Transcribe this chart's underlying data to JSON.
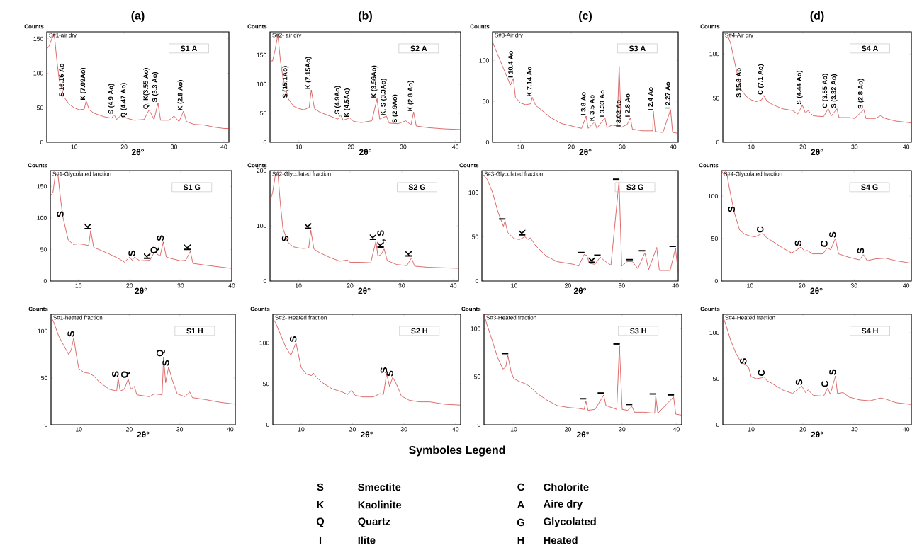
{
  "chart_data": [
    {
      "type": "line",
      "title": "(a)",
      "subtitle": "S#1-air dry",
      "xlabel": "2θ°",
      "ylabel": "Counts",
      "x": [
        4.5,
        5,
        5.5,
        6,
        6.5,
        7,
        8,
        9,
        10,
        11,
        12,
        12.4,
        13,
        14,
        16,
        17.5,
        18,
        18.5,
        19.5,
        20.5,
        22,
        24,
        25,
        26,
        26.8,
        27.3,
        29,
        30,
        31,
        31.9,
        32.5,
        34,
        36,
        38,
        40,
        41
      ],
      "series": [
        {
          "color": "#cc2222",
          "values": [
            135,
            140,
            150,
            157,
            120,
            90,
            65,
            55,
            50,
            47,
            48,
            60,
            47,
            42,
            37,
            35,
            40,
            33,
            40,
            35,
            32,
            33,
            47,
            33,
            57,
            32,
            32,
            38,
            30,
            45,
            30,
            26,
            25,
            22,
            20,
            20
          ]
        }
      ],
      "xlim": [
        4.5,
        41
      ],
      "ylim": [
        0,
        160
      ],
      "xticks": [
        10,
        20,
        30,
        40
      ],
      "yticks": [
        0,
        50,
        100,
        150
      ],
      "annotations": [
        "S1 A",
        {
          "text": "S 15.16 Ao",
          "x": 8,
          "y": 65
        },
        {
          "text": "K (7.09Ao)",
          "x": 12.4,
          "y": 60
        },
        {
          "text": "S (4.9 Ao)",
          "x": 18,
          "y": 40
        },
        {
          "text": "Q  (4.47 Ao)",
          "x": 20.5,
          "y": 35
        },
        {
          "text": "Q, K(3.55 Ao)",
          "x": 25,
          "y": 47
        },
        {
          "text": "S  (3.3 Ao)",
          "x": 26.8,
          "y": 57
        },
        {
          "text": "K  (2.8 Ao)",
          "x": 31.9,
          "y": 45
        }
      ]
    },
    {
      "type": "line",
      "title": "(b)",
      "subtitle": "S#2- air dry",
      "xlabel": "2θ°",
      "ylabel": "Counts",
      "x": [
        4.5,
        5,
        5.5,
        6,
        6.5,
        7,
        8,
        9,
        10,
        11,
        12,
        12.4,
        13,
        14,
        16,
        17.5,
        18,
        18.5,
        19.8,
        20.5,
        22,
        24,
        25,
        25.5,
        26.8,
        27.3,
        29,
        30.5,
        31.5,
        32,
        32.5,
        35,
        38,
        41
      ],
      "series": [
        {
          "color": "#cc2222",
          "values": [
            140,
            140,
            160,
            185,
            140,
            110,
            75,
            62,
            58,
            56,
            60,
            90,
            58,
            52,
            45,
            40,
            47,
            38,
            42,
            36,
            34,
            37,
            75,
            40,
            45,
            33,
            32,
            37,
            30,
            52,
            28,
            25,
            23,
            22
          ]
        }
      ],
      "xlim": [
        4.5,
        41
      ],
      "ylim": [
        0,
        190
      ],
      "xticks": [
        10,
        20,
        30,
        40
      ],
      "yticks": [
        0,
        50,
        100,
        150
      ],
      "annotations": [
        "S2 A",
        {
          "text": "S (15.1Ao)",
          "x": 8,
          "y": 75
        },
        {
          "text": "K (7.15Ao)",
          "x": 12.4,
          "y": 90
        },
        {
          "text": "S (4.9Ao)",
          "x": 18,
          "y": 47
        },
        {
          "text": "K (4.5Ao)",
          "x": 19.8,
          "y": 42
        },
        {
          "text": "K (3.56Ao)",
          "x": 25,
          "y": 75
        },
        {
          "text": "K, S (3.3Ao)",
          "x": 26.8,
          "y": 45
        },
        {
          "text": "S (2.9Ao)",
          "x": 29,
          "y": 32
        },
        {
          "text": "K (2.8 Ao)",
          "x": 32,
          "y": 52
        }
      ]
    },
    {
      "type": "line",
      "title": "(c)",
      "subtitle": "S#3-Air dry",
      "xlabel": "2θ°",
      "ylabel": "Counts",
      "x": [
        4.5,
        5,
        6,
        7,
        8,
        8.6,
        9,
        10,
        11,
        12,
        12.3,
        13,
        14,
        16,
        18,
        20,
        22,
        22.9,
        23.3,
        24.6,
        25,
        26.6,
        27,
        28,
        29,
        29.4,
        29.8,
        31,
        31.6,
        32,
        34,
        36,
        36.1,
        36.5,
        38,
        39.5,
        39.9,
        41
      ],
      "series": [
        {
          "color": "#cc2222",
          "values": [
            123,
            115,
            100,
            85,
            70,
            78,
            55,
            48,
            46,
            47,
            55,
            45,
            40,
            30,
            23,
            20,
            17,
            32,
            17,
            25,
            17,
            30,
            18,
            21,
            20,
            93,
            18,
            22,
            30,
            16,
            14,
            14,
            38,
            13,
            12,
            40,
            12,
            11
          ]
        }
      ],
      "xlim": [
        4.5,
        41
      ],
      "ylim": [
        0,
        135
      ],
      "xticks": [
        10,
        20,
        30,
        40
      ],
      "yticks": [
        0,
        50,
        100
      ],
      "annotations": [
        "S3 A",
        {
          "text": "I 10.4 Ao",
          "x": 8.6,
          "y": 78
        },
        {
          "text": "K 7.14 Ao",
          "x": 12.3,
          "y": 55
        },
        {
          "text": "I 3.8 Ao",
          "x": 22.9,
          "y": 32
        },
        {
          "text": "K 3.5 Ao",
          "x": 24.6,
          "y": 25
        },
        {
          "text": "I 3.33 Ao",
          "x": 26.6,
          "y": 30
        },
        {
          "text": "I 3.02 Ao",
          "x": 29.8,
          "y": 18
        },
        {
          "text": "I 2.8 Ao",
          "x": 31.6,
          "y": 30
        },
        {
          "text": "I 2.4 Ao",
          "x": 36.1,
          "y": 38
        },
        {
          "text": "I 2.27 Ao",
          "x": 39.5,
          "y": 40
        }
      ]
    },
    {
      "type": "line",
      "title": "(d)",
      "subtitle": "S#4-Air dry",
      "xlabel": "2θ°",
      "ylabel": "Counts",
      "x": [
        4.5,
        5.5,
        6,
        7,
        8,
        9,
        10,
        11,
        12,
        12.4,
        13,
        14,
        16,
        18,
        19,
        19.9,
        20.5,
        21,
        22,
        24,
        24.9,
        25.5,
        26.6,
        27,
        29,
        30,
        31.8,
        32.2,
        34,
        35,
        36,
        38,
        41
      ],
      "series": [
        {
          "color": "#cc2222",
          "values": [
            125,
            120,
            112,
            85,
            60,
            52,
            48,
            46,
            48,
            53,
            47,
            43,
            38,
            36,
            32,
            42,
            33,
            36,
            30,
            29,
            38,
            30,
            38,
            28,
            28,
            27,
            37,
            27,
            27,
            30,
            27,
            24,
            22
          ]
        }
      ],
      "xlim": [
        4.5,
        41
      ],
      "ylim": [
        0,
        125
      ],
      "xticks": [
        10,
        20,
        30,
        40
      ],
      "yticks": [
        0,
        50,
        100
      ],
      "annotations": [
        "S4 A",
        {
          "text": "S 15.3 Ao",
          "x": 7,
          "y": 85
        },
        {
          "text": "C (7.1 Ao)",
          "x": 12.4,
          "y": 53
        },
        {
          "text": "S (4.44 Ao)",
          "x": 19.9,
          "y": 42
        },
        {
          "text": "C (3.55 Ao)",
          "x": 24.9,
          "y": 38
        },
        {
          "text": "S (3.32 Ao)",
          "x": 26.6,
          "y": 38
        },
        {
          "text": "S (2.8 Ao)",
          "x": 31.8,
          "y": 37
        }
      ]
    },
    {
      "type": "line",
      "subtitle": "S#1-Glycolated farction",
      "xlabel": "2θ°",
      "ylabel": "Counts",
      "x": [
        4.5,
        5,
        5.5,
        6,
        6.5,
        7,
        8,
        9,
        10,
        11,
        12,
        12.4,
        13,
        14,
        16,
        18,
        19,
        20,
        20.5,
        21,
        22,
        24,
        25,
        25.5,
        26,
        26.6,
        27.2,
        28,
        30,
        31,
        31.9,
        32.4,
        35,
        38,
        40
      ],
      "series": [
        {
          "color": "#cc2222",
          "values": [
            135,
            140,
            170,
            168,
            130,
            100,
            65,
            58,
            59,
            58,
            56,
            80,
            53,
            50,
            43,
            35,
            30,
            38,
            33,
            38,
            32,
            33,
            48,
            42,
            40,
            62,
            38,
            36,
            32,
            33,
            47,
            28,
            25,
            22,
            20
          ]
        }
      ],
      "xlim": [
        4.5,
        40
      ],
      "ylim": [
        0,
        175
      ],
      "xticks": [
        10,
        20,
        30,
        40
      ],
      "yticks": [
        0,
        50,
        100,
        150
      ],
      "annotations": [
        "S1 G",
        {
          "text": "S",
          "x": 7,
          "y": 100
        },
        {
          "text": "K",
          "x": 12.4,
          "y": 80
        },
        {
          "text": "S",
          "x": 21,
          "y": 38
        },
        {
          "text": "Q",
          "x": 25.5,
          "y": 42
        },
        {
          "text": "K",
          "x": 24,
          "y": 33
        },
        {
          "text": "S",
          "x": 26.6,
          "y": 62
        },
        {
          "text": "K",
          "x": 31.9,
          "y": 47
        }
      ]
    },
    {
      "type": "line",
      "subtitle": "S#2-Glycolated fraction",
      "xlabel": "2θ°",
      "ylabel": "Counts",
      "x": [
        4.5,
        5,
        5.5,
        6,
        6.5,
        7,
        8,
        9,
        10,
        11,
        12,
        12.4,
        13,
        14,
        16,
        18,
        19.5,
        20,
        22,
        24,
        25,
        25.4,
        26,
        26.6,
        27.2,
        29,
        31,
        31.9,
        32.5,
        35,
        38,
        41
      ],
      "series": [
        {
          "color": "#cc2222",
          "values": [
            145,
            160,
            190,
            198,
            140,
            95,
            70,
            62,
            60,
            59,
            60,
            92,
            58,
            52,
            43,
            36,
            38,
            34,
            34,
            33,
            72,
            45,
            48,
            58,
            37,
            30,
            28,
            42,
            27,
            25,
            24,
            23
          ]
        }
      ],
      "xlim": [
        4.5,
        41
      ],
      "ylim": [
        0,
        200
      ],
      "xticks": [
        10,
        20,
        30,
        40
      ],
      "yticks": [
        0,
        100,
        200
      ],
      "annotations": [
        "S2 G",
        {
          "text": "S",
          "x": 8,
          "y": 70
        },
        {
          "text": "K",
          "x": 12.4,
          "y": 92
        },
        {
          "text": "K",
          "x": 25,
          "y": 72
        },
        {
          "text": "K, S",
          "x": 26.6,
          "y": 58
        },
        {
          "text": "K",
          "x": 31.9,
          "y": 42
        }
      ]
    },
    {
      "type": "line",
      "subtitle": "S#3-Glycolated fraction",
      "xlabel": "2θ°",
      "ylabel": "Counts",
      "x": [
        4,
        5,
        6,
        7,
        8,
        8.3,
        8.8,
        10,
        11,
        12,
        12.6,
        13,
        14,
        16,
        18,
        20,
        21,
        22,
        23,
        23.5,
        24,
        25,
        26,
        27,
        28,
        29.5,
        30,
        31,
        32,
        33,
        34.3,
        35,
        36.5,
        37,
        39,
        40,
        40.5
      ],
      "series": [
        {
          "color": "#cc2222",
          "values": [
            122,
            115,
            100,
            78,
            62,
            68,
            55,
            48,
            47,
            50,
            47,
            49,
            40,
            28,
            22,
            20,
            19,
            17,
            30,
            29,
            20,
            19,
            27,
            22,
            18,
            113,
            17,
            22,
            22,
            14,
            32,
            13,
            38,
            12,
            12,
            37,
            10
          ]
        }
      ],
      "xlim": [
        4,
        40.5
      ],
      "ylim": [
        0,
        125
      ],
      "xticks": [
        10,
        20,
        30,
        40
      ],
      "yticks": [
        0,
        50,
        100
      ],
      "annotations": [
        "S3 G",
        {
          "text": "I",
          "x": 8.3,
          "y": 68
        },
        {
          "text": "K",
          "x": 12,
          "y": 50
        },
        {
          "text": "I",
          "x": 23,
          "y": 30
        },
        {
          "text": "K",
          "x": 25,
          "y": 19
        },
        {
          "text": "I",
          "x": 26,
          "y": 27
        },
        {
          "text": "I",
          "x": 29.5,
          "y": 113
        },
        {
          "text": "I",
          "x": 32,
          "y": 22
        },
        {
          "text": "I",
          "x": 34.3,
          "y": 32
        },
        {
          "text": "I",
          "x": 40,
          "y": 37
        }
      ]
    },
    {
      "type": "line",
      "subtitle": "S#4-Glycolated fraction",
      "xlabel": "2θ°",
      "ylabel": "Counts",
      "x": [
        4.5,
        5,
        5.5,
        6,
        7,
        8,
        9,
        10,
        11,
        12,
        12.5,
        13,
        14,
        16,
        18,
        19.8,
        20.5,
        21,
        22,
        24,
        24.8,
        25.5,
        26.4,
        27,
        29,
        31,
        31.8,
        32.5,
        34,
        36,
        38,
        41
      ],
      "series": [
        {
          "color": "#cc2222",
          "values": [
            130,
            125,
            128,
            110,
            80,
            60,
            55,
            53,
            52,
            55,
            56,
            52,
            48,
            40,
            33,
            40,
            35,
            36,
            32,
            32,
            39,
            37,
            50,
            32,
            28,
            25,
            31,
            24,
            26,
            27,
            24,
            21
          ]
        }
      ],
      "xlim": [
        4.5,
        41
      ],
      "ylim": [
        0,
        130
      ],
      "xticks": [
        10,
        20,
        30,
        40
      ],
      "yticks": [
        0,
        50,
        100
      ],
      "annotations": [
        "S4 G",
        {
          "text": "S",
          "x": 7,
          "y": 80
        },
        {
          "text": "C",
          "x": 12.5,
          "y": 56
        },
        {
          "text": "S",
          "x": 19.8,
          "y": 40
        },
        {
          "text": "C",
          "x": 24.8,
          "y": 39
        },
        {
          "text": "S",
          "x": 26.4,
          "y": 50
        },
        {
          "text": "S",
          "x": 31.8,
          "y": 31
        }
      ]
    },
    {
      "type": "line",
      "subtitle": "S#1-heated fraction",
      "xlabel": "2θ°",
      "ylabel": "Counts",
      "x": [
        4.5,
        5,
        6,
        7,
        8,
        8.5,
        9,
        9.5,
        10,
        11,
        12,
        13,
        14,
        16,
        17.5,
        17.8,
        18.2,
        19,
        19.8,
        20.3,
        21,
        21.5,
        24,
        25,
        26.5,
        26.8,
        27.2,
        27.8,
        28.5,
        29.5,
        31,
        32,
        32.5,
        35,
        38,
        41
      ],
      "series": [
        {
          "color": "#cc2222",
          "values": [
            115,
            110,
            95,
            85,
            75,
            80,
            93,
            75,
            60,
            56,
            55,
            52,
            46,
            38,
            36,
            50,
            36,
            38,
            49,
            38,
            41,
            32,
            30,
            33,
            32,
            72,
            45,
            62,
            48,
            33,
            30,
            35,
            29,
            27,
            24,
            22
          ]
        }
      ],
      "xlim": [
        4.5,
        41
      ],
      "ylim": [
        0,
        118
      ],
      "xticks": [
        10,
        20,
        30,
        40
      ],
      "yticks": [
        0,
        50,
        100
      ],
      "annotations": [
        "S1 H",
        {
          "text": "S",
          "x": 9,
          "y": 93
        },
        {
          "text": "S",
          "x": 17.8,
          "y": 50
        },
        {
          "text": "Q",
          "x": 19.8,
          "y": 49
        },
        {
          "text": "Q",
          "x": 26.8,
          "y": 72
        },
        {
          "text": "S",
          "x": 27.8,
          "y": 62
        }
      ]
    },
    {
      "type": "line",
      "subtitle": "S#2- Heated fraction",
      "xlabel": "2θ°",
      "ylabel": "Counts",
      "x": [
        4.5,
        5,
        6,
        7,
        8,
        9,
        9.5,
        10,
        11,
        12,
        12.4,
        13,
        14,
        16,
        18,
        19,
        19.8,
        20.5,
        22,
        24,
        25.3,
        26,
        26.6,
        27.2,
        27.8,
        28.5,
        29.5,
        31,
        33,
        35,
        38,
        41
      ],
      "series": [
        {
          "color": "#cc2222",
          "values": [
            130,
            125,
            110,
            95,
            85,
            100,
            85,
            70,
            62,
            60,
            63,
            58,
            52,
            44,
            40,
            37,
            42,
            36,
            34,
            34,
            38,
            37,
            62,
            47,
            58,
            50,
            35,
            30,
            28,
            28,
            25,
            24
          ]
        }
      ],
      "xlim": [
        4.5,
        41
      ],
      "ylim": [
        0,
        135
      ],
      "xticks": [
        10,
        20,
        30,
        40
      ],
      "yticks": [
        0,
        50,
        100
      ],
      "annotations": [
        "S2 H",
        {
          "text": "S",
          "x": 9,
          "y": 100
        },
        {
          "text": "S",
          "x": 26.6,
          "y": 62
        },
        {
          "text": "S",
          "x": 27.8,
          "y": 58
        }
      ]
    },
    {
      "type": "line",
      "subtitle": "S#3-Heated fraction",
      "xlabel": "2θ°",
      "ylabel": "Counts",
      "x": [
        4.5,
        5,
        6,
        7,
        8,
        8.5,
        8.9,
        9.5,
        10,
        11,
        12,
        13,
        14,
        16,
        18,
        20,
        22,
        23,
        23.3,
        23.7,
        25,
        26.6,
        27,
        28,
        29,
        29.5,
        30,
        31,
        31.8,
        32.3,
        34,
        36,
        36.2,
        36.6,
        39.5,
        39.9,
        41
      ],
      "series": [
        {
          "color": "#cc2222",
          "values": [
            115,
            105,
            88,
            70,
            58,
            60,
            72,
            55,
            48,
            45,
            43,
            40,
            34,
            26,
            20,
            18,
            17,
            16,
            25,
            15,
            16,
            31,
            20,
            18,
            16,
            82,
            16,
            15,
            19,
            13,
            13,
            12,
            30,
            12,
            29,
            11,
            10
          ]
        }
      ],
      "xlim": [
        4.5,
        41
      ],
      "ylim": [
        0,
        115
      ],
      "xticks": [
        10,
        20,
        30,
        40
      ],
      "yticks": [
        0,
        50,
        100
      ],
      "annotations": [
        "S3 H",
        {
          "text": "I",
          "x": 8.9,
          "y": 72
        },
        {
          "text": "I",
          "x": 23.3,
          "y": 25
        },
        {
          "text": "I",
          "x": 26.6,
          "y": 31
        },
        {
          "text": "I",
          "x": 29.5,
          "y": 82
        },
        {
          "text": "I",
          "x": 31.8,
          "y": 19
        },
        {
          "text": "I",
          "x": 36.2,
          "y": 30
        },
        {
          "text": "I",
          "x": 39.5,
          "y": 29
        }
      ]
    },
    {
      "type": "line",
      "subtitle": "S#4-Heated fraction",
      "xlabel": "2θ°",
      "ylabel": "Counts",
      "x": [
        4.5,
        5,
        6,
        7,
        8,
        9,
        9.5,
        10,
        11,
        12,
        12.5,
        13,
        14,
        16,
        18,
        19.8,
        20.5,
        21,
        22,
        24,
        24.8,
        25.3,
        26.3,
        26.7,
        27.8,
        29,
        31,
        33,
        35,
        36,
        38,
        41
      ],
      "series": [
        {
          "color": "#cc2222",
          "values": [
            118,
            110,
            92,
            78,
            68,
            65,
            62,
            52,
            50,
            51,
            52,
            48,
            45,
            38,
            34,
            42,
            35,
            38,
            32,
            31,
            40,
            33,
            53,
            34,
            35,
            30,
            27,
            26,
            29,
            28,
            24,
            22
          ]
        }
      ],
      "xlim": [
        4.5,
        41
      ],
      "ylim": [
        0,
        120
      ],
      "xticks": [
        10,
        20,
        30,
        40
      ],
      "yticks": [
        0,
        50,
        100
      ],
      "annotations": [
        "S4 H",
        {
          "text": "S",
          "x": 9,
          "y": 65
        },
        {
          "text": "C",
          "x": 12.5,
          "y": 52
        },
        {
          "text": "S",
          "x": 19.8,
          "y": 42
        },
        {
          "text": "C",
          "x": 24.8,
          "y": 40
        },
        {
          "text": "S",
          "x": 26.3,
          "y": 53
        }
      ]
    },
    {
      "type": "other",
      "title": "Symboles Legend",
      "annotations": [
        "S",
        "Smectite",
        "K",
        "Kaolinite",
        "Q",
        "Quartz",
        "I",
        "Ilite",
        "C",
        "Cholorite",
        "A",
        "Aire dry",
        "G",
        "Glycolated",
        "H",
        "Heated"
      ]
    }
  ]
}
